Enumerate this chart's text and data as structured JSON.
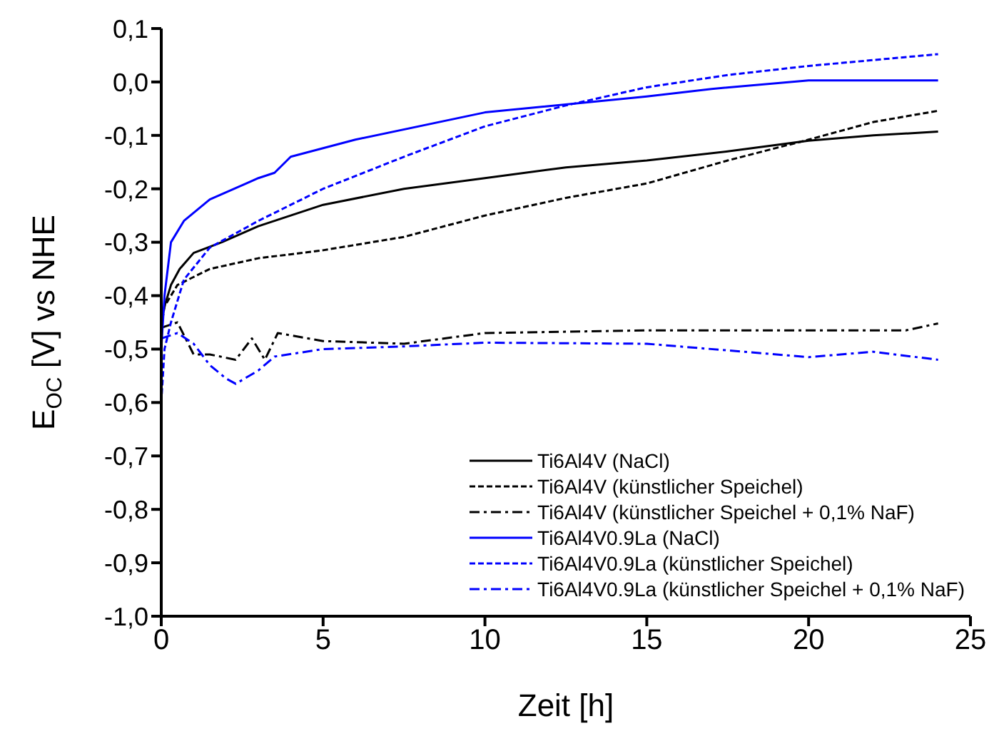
{
  "chart_data": {
    "type": "line",
    "xlabel": "Zeit [h]",
    "ylabel": "E$_{OC}$ [V] vs NHE",
    "xlim": [
      0,
      25
    ],
    "xticks": [
      0,
      5,
      10,
      15,
      20,
      25
    ],
    "ylim": [
      -1.0,
      0.1
    ],
    "yticks": [
      {
        "value": 0.1,
        "label": "0,1"
      },
      {
        "value": 0,
        "label": "0,0"
      },
      {
        "value": -0.1,
        "label": "-0,1"
      },
      {
        "value": -0.2,
        "label": "-0,2"
      },
      {
        "value": -0.3,
        "label": "-0,3"
      },
      {
        "value": -0.4,
        "label": "-0,4"
      },
      {
        "value": -0.5,
        "label": "-0,5"
      },
      {
        "value": -0.6,
        "label": "-0,6"
      },
      {
        "value": -0.7,
        "label": "-0,7"
      },
      {
        "value": -0.8,
        "label": "-0,8"
      },
      {
        "value": -0.9,
        "label": "-0,9"
      },
      {
        "value": -1.0,
        "label": "-1,0"
      }
    ],
    "legend": "bottom right",
    "marker": "none",
    "series": [
      {
        "name": "Ti6Al4V (NaCl)",
        "color": "#000000",
        "line_style": "solid",
        "x": [
          0,
          0.1,
          0.3,
          0.57,
          1,
          1.87,
          3,
          5,
          7.5,
          10,
          12.5,
          15,
          17.5,
          20,
          22,
          24
        ],
        "values": [
          -0.45,
          -0.42,
          -0.38,
          -0.35,
          -0.32,
          -0.3,
          -0.27,
          -0.23,
          -0.2,
          -0.18,
          -0.16,
          -0.147,
          -0.13,
          -0.11,
          -0.1,
          -0.093
        ]
      },
      {
        "name": "Ti6Al4V (künstlicher Speichel)",
        "color": "#000000",
        "line_style": "dashed",
        "x": [
          0,
          0.1,
          0.5,
          1.5,
          3,
          5,
          7.5,
          10,
          12.5,
          15,
          17.5,
          20,
          22,
          24
        ],
        "values": [
          -0.46,
          -0.42,
          -0.38,
          -0.35,
          -0.33,
          -0.315,
          -0.29,
          -0.25,
          -0.217,
          -0.19,
          -0.147,
          -0.108,
          -0.075,
          -0.054
        ]
      },
      {
        "name": "Ti6Al4V (künstlicher Speichel + 0,1% NaF)",
        "color": "#000000",
        "line_style": "dashdot",
        "x": [
          0,
          0.5,
          1,
          1.5,
          2.3,
          2.8,
          3.2,
          3.6,
          5,
          7.5,
          10,
          15,
          20,
          23,
          24
        ],
        "values": [
          -0.46,
          -0.45,
          -0.51,
          -0.51,
          -0.52,
          -0.48,
          -0.52,
          -0.47,
          -0.485,
          -0.49,
          -0.47,
          -0.465,
          -0.465,
          -0.465,
          -0.452
        ]
      },
      {
        "name": "Ti6Al4V0.9La (NaCl)",
        "color": "#0000ff",
        "line_style": "solid",
        "x": [
          0,
          0.1,
          0.3,
          0.7,
          1.5,
          3,
          3.5,
          4,
          6,
          10,
          15,
          17,
          20,
          24
        ],
        "values": [
          -0.5,
          -0.4,
          -0.3,
          -0.26,
          -0.22,
          -0.18,
          -0.17,
          -0.14,
          -0.108,
          -0.057,
          -0.027,
          -0.013,
          0.003,
          0.003
        ]
      },
      {
        "name": "Ti6Al4V0.9La (künstlicher Speichel)",
        "color": "#0000ff",
        "line_style": "dashed",
        "x": [
          0,
          0.1,
          0.3,
          0.7,
          1.5,
          3,
          5,
          7.5,
          10,
          12.5,
          15,
          17.5,
          20,
          24
        ],
        "values": [
          -0.6,
          -0.5,
          -0.45,
          -0.37,
          -0.31,
          -0.26,
          -0.2,
          -0.14,
          -0.083,
          -0.044,
          -0.01,
          0.013,
          0.03,
          0.052
        ]
      },
      {
        "name": "Ti6Al4V0.9La (künstlicher Speichel + 0,1% NaF)",
        "color": "#0000ff",
        "line_style": "dashdot",
        "x": [
          0,
          0.5,
          1,
          1.5,
          2,
          2.3,
          3,
          3.5,
          5,
          7.5,
          10,
          15,
          20,
          22,
          24
        ],
        "values": [
          -0.48,
          -0.47,
          -0.49,
          -0.53,
          -0.555,
          -0.565,
          -0.54,
          -0.514,
          -0.5,
          -0.495,
          -0.488,
          -0.49,
          -0.515,
          -0.505,
          -0.52
        ]
      }
    ]
  }
}
